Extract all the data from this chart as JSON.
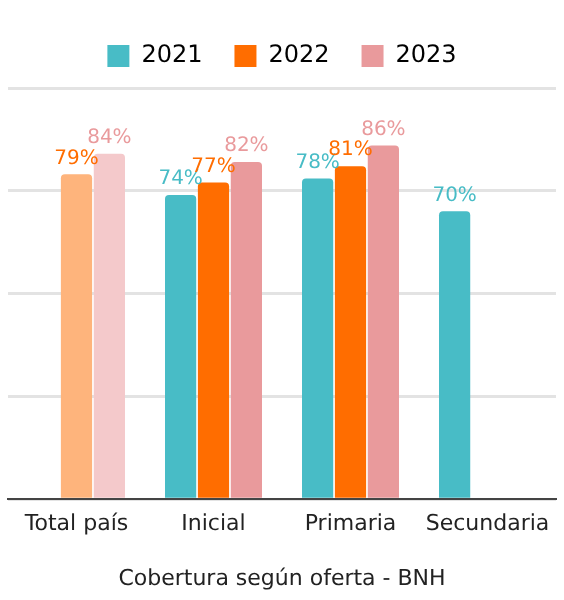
{
  "chart_data": {
    "type": "bar",
    "xlabel": "Cobertura según oferta - BNH",
    "categories": [
      "Total país",
      "Inicial",
      "Primaria",
      "Secundaria"
    ],
    "series": [
      {
        "name": "2021",
        "color": "#48bcc6",
        "colors": [
          "#a3dde2",
          "#48bcc6",
          "#48bcc6",
          "#48bcc6"
        ],
        "values": [
          null,
          74,
          78,
          70
        ],
        "value_labels": [
          null,
          "74%",
          "78%",
          "70%"
        ]
      },
      {
        "name": "2022",
        "color": "#ff6d00",
        "colors": [
          "#feb47c",
          "#ff6d00",
          "#ff6d00",
          "#ff6d00"
        ],
        "values": [
          79,
          77,
          81,
          null
        ],
        "value_labels": [
          "79%",
          "77%",
          "81%",
          null
        ]
      },
      {
        "name": "2023",
        "color": "#e99a9c",
        "colors": [
          "#f4c9cb",
          "#e99a9c",
          "#e99a9c",
          "#e99a9c"
        ],
        "values": [
          84,
          82,
          86,
          null
        ],
        "value_labels": [
          "84%",
          "82%",
          "86%",
          null
        ]
      }
    ],
    "ylim": [
      0,
      100
    ],
    "yticks": [
      0,
      25,
      50,
      75,
      100
    ],
    "grid": "y",
    "legend": "top",
    "tick_labels": "x"
  }
}
